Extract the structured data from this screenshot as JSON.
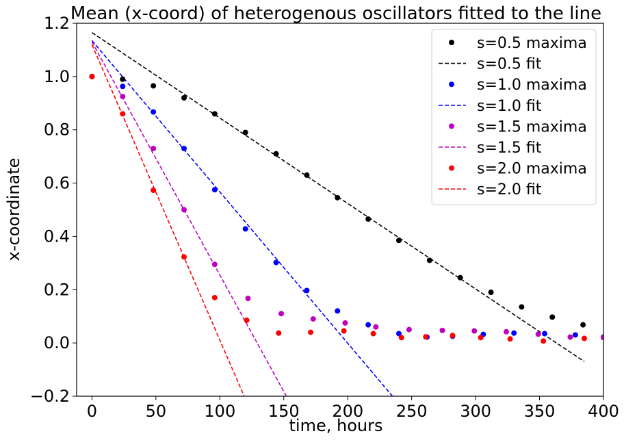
{
  "chart_data": {
    "type": "scatter",
    "title": "Mean (x-coord) of heterogenous oscillators fitted to the line",
    "xlabel": "time, hours",
    "ylabel": "x-coordinate",
    "xlim": [
      -12,
      400
    ],
    "ylim": [
      -0.2,
      1.2
    ],
    "xticks": [
      0,
      50,
      100,
      150,
      200,
      250,
      300,
      350,
      400
    ],
    "yticks": [
      -0.2,
      0.0,
      0.2,
      0.4,
      0.6,
      0.8,
      1.0,
      1.2
    ],
    "ytick_labels": [
      "−0.2",
      "0.0",
      "0.2",
      "0.4",
      "0.6",
      "0.8",
      "1.0",
      "1.2"
    ],
    "grid": false,
    "legend_position": "top-right",
    "series": [
      {
        "name": "s=0.5 maxima",
        "kind": "points",
        "color": "#000000",
        "x": [
          0,
          24,
          48,
          72,
          96,
          120,
          144,
          168,
          192,
          216,
          240,
          264,
          288,
          312,
          336,
          360,
          384,
          400
        ],
        "y": [
          1.0,
          0.99,
          0.965,
          0.92,
          0.86,
          0.79,
          0.71,
          0.63,
          0.545,
          0.465,
          0.385,
          0.31,
          0.245,
          0.19,
          0.135,
          0.097,
          0.068,
          0.022
        ]
      },
      {
        "name": "s=0.5 fit",
        "kind": "line",
        "color": "#000000",
        "x": [
          0,
          385
        ],
        "y": [
          1.165,
          -0.07
        ]
      },
      {
        "name": "s=1.0 maxima",
        "kind": "points",
        "color": "#0000ff",
        "x": [
          0,
          24,
          48,
          72,
          96,
          120,
          144,
          168,
          192,
          216,
          240,
          262,
          282,
          306,
          330,
          354,
          378,
          400
        ],
        "y": [
          1.0,
          0.963,
          0.867,
          0.73,
          0.575,
          0.428,
          0.302,
          0.197,
          0.12,
          0.068,
          0.035,
          0.022,
          0.025,
          0.032,
          0.037,
          0.035,
          0.03,
          0.022
        ]
      },
      {
        "name": "s=1.0 fit",
        "kind": "line",
        "color": "#0000ff",
        "x": [
          0,
          235
        ],
        "y": [
          1.135,
          -0.2
        ]
      },
      {
        "name": "s=1.5 maxima",
        "kind": "points",
        "color": "#bf00bf",
        "x": [
          0,
          24,
          48,
          72,
          96,
          122,
          148,
          173,
          198,
          222,
          248,
          274,
          299,
          324,
          349,
          374,
          400
        ],
        "y": [
          1.0,
          0.925,
          0.73,
          0.5,
          0.295,
          0.167,
          0.11,
          0.09,
          0.075,
          0.06,
          0.05,
          0.047,
          0.045,
          0.042,
          0.033,
          0.022,
          0.02
        ]
      },
      {
        "name": "s=1.5 fit",
        "kind": "line",
        "color": "#bf00bf",
        "x": [
          0,
          152
        ],
        "y": [
          1.13,
          -0.2
        ]
      },
      {
        "name": "s=2.0 maxima",
        "kind": "points",
        "color": "#ff0000",
        "x": [
          0,
          24,
          48,
          72,
          96,
          121,
          146,
          171,
          197,
          220,
          242,
          261,
          282,
          304,
          327,
          353,
          385
        ],
        "y": [
          1.0,
          0.86,
          0.573,
          0.323,
          0.17,
          0.085,
          0.037,
          0.04,
          0.045,
          0.035,
          0.02,
          0.023,
          0.028,
          0.02,
          0.015,
          0.007,
          0.017
        ]
      },
      {
        "name": "s=2.0 fit",
        "kind": "line",
        "color": "#ff0000",
        "x": [
          0,
          119
        ],
        "y": [
          1.12,
          -0.2
        ]
      }
    ]
  }
}
